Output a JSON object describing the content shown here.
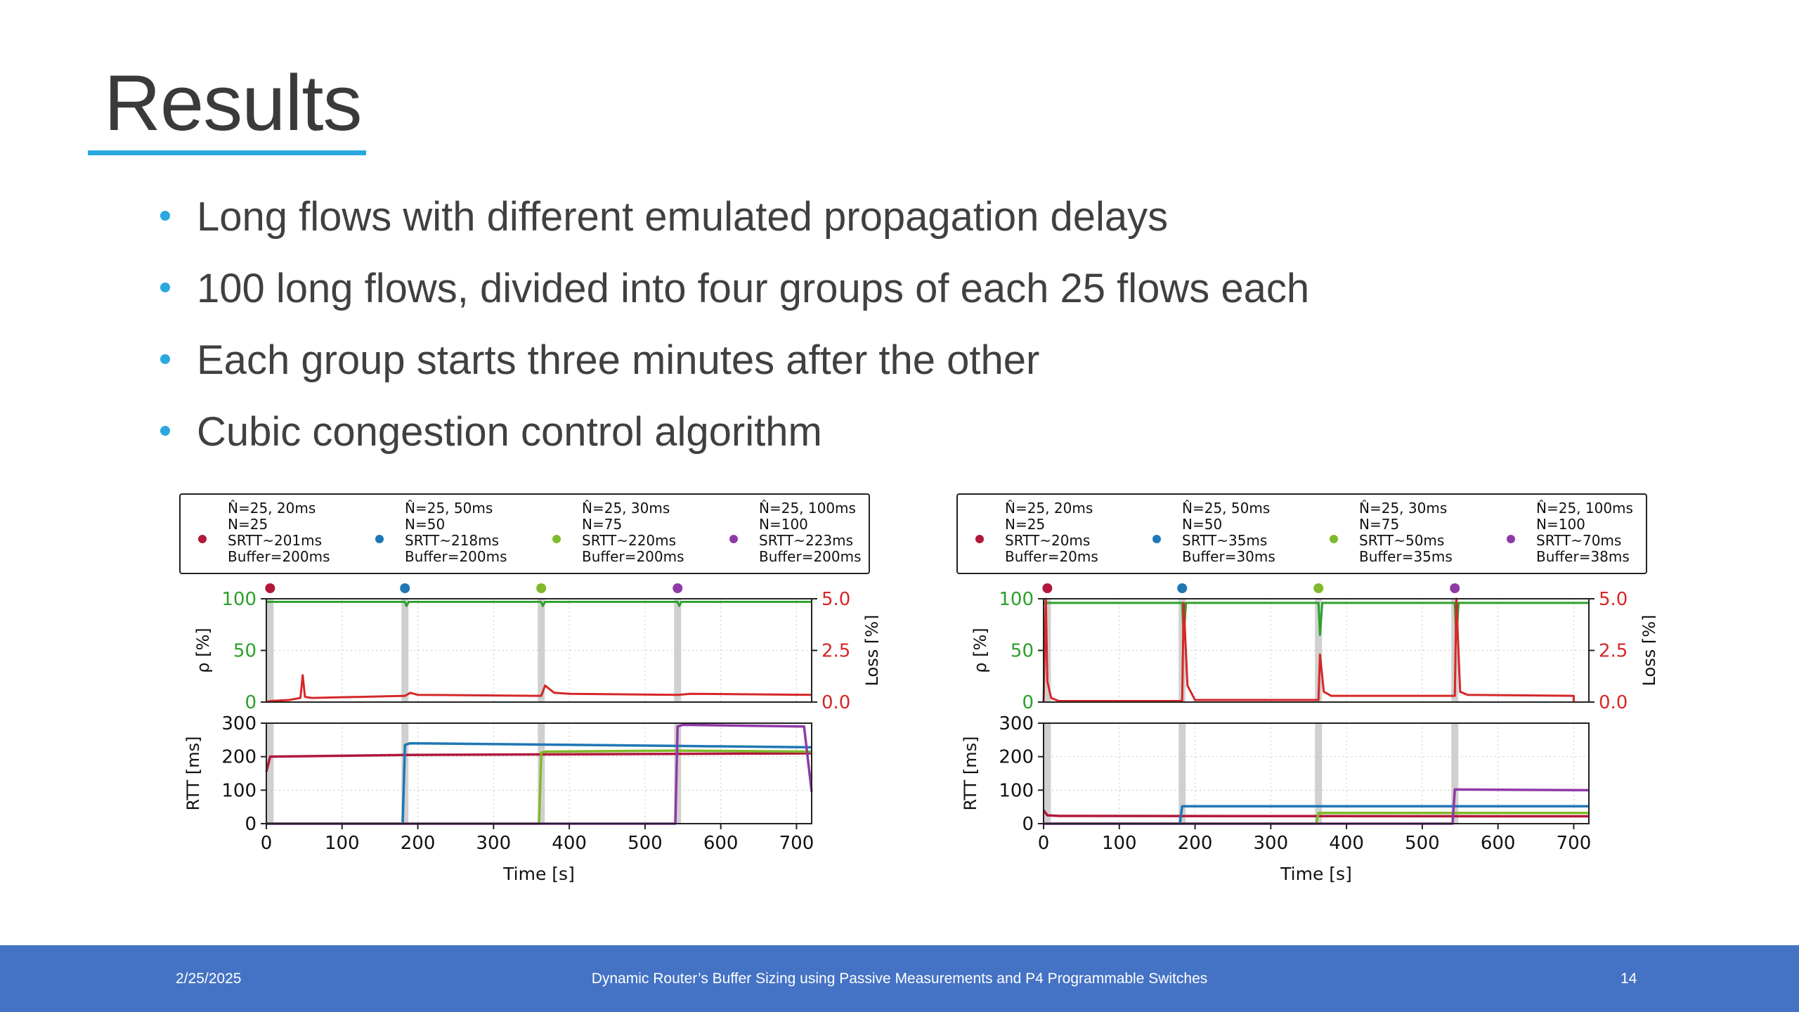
{
  "slide": {
    "title": "Results",
    "bullets": [
      "Long flows with different emulated propagation delays",
      "100 long flows, divided into four groups of each 25 flows each",
      "Each group starts three minutes after the other",
      "Cubic congestion control algorithm"
    ],
    "accent_color": "#2aa8df"
  },
  "footer": {
    "date": "2/25/2025",
    "title": "Dynamic Router’s Buffer Sizing using Passive Measurements and P4 Programmable Switches",
    "page": "14",
    "color": "#4472c4"
  },
  "chart_data": [
    {
      "type": "line",
      "legend": [
        {
          "color": "#b2183c",
          "lines": [
            "N̂=25, 20ms",
            "N=25",
            "SRTT~201ms",
            "Buffer=200ms"
          ]
        },
        {
          "color": "#1f77b4",
          "lines": [
            "N̂=25, 50ms",
            "N=50",
            "SRTT~218ms",
            "Buffer=200ms"
          ]
        },
        {
          "color": "#7fba2a",
          "lines": [
            "N̂=25, 30ms",
            "N=75",
            "SRTT~220ms",
            "Buffer=200ms"
          ]
        },
        {
          "color": "#8e3aa6",
          "lines": [
            "N̂=25, 100ms",
            "N=100",
            "SRTT~223ms",
            "Buffer=200ms"
          ]
        }
      ],
      "start_times": [
        5,
        183,
        363,
        543
      ],
      "top_panel": {
        "ylabel": "ρ [%]",
        "ylim": [
          0,
          100
        ],
        "yticks": [
          "0",
          "50",
          "100"
        ],
        "y2label": "Loss [%]",
        "y2lim": [
          0,
          5
        ],
        "y2ticks": [
          "0.0",
          "2.5",
          "5.0"
        ],
        "series": [
          {
            "axis": "left",
            "color": "#2ca02c",
            "x": [
              0,
              183,
              185,
              188,
              363,
              365,
              368,
              543,
              545,
              548,
              720
            ],
            "values": [
              97,
              97,
              93,
              97,
              97,
              93,
              97,
              97,
              93,
              97,
              97
            ]
          },
          {
            "axis": "right",
            "color": "#d62728",
            "x": [
              0,
              5,
              30,
              45,
              48,
              51,
              60,
              183,
              190,
              200,
              363,
              368,
              380,
              400,
              543,
              560,
              720
            ],
            "values": [
              0,
              0.05,
              0.1,
              0.2,
              1.3,
              0.25,
              0.2,
              0.3,
              0.45,
              0.35,
              0.3,
              0.8,
              0.45,
              0.4,
              0.35,
              0.4,
              0.35
            ]
          }
        ]
      },
      "bottom_panel": {
        "ylabel": "RTT [ms]",
        "ylim": [
          0,
          300
        ],
        "yticks": [
          "0",
          "100",
          "200",
          "300"
        ],
        "xlabel": "Time [s]",
        "xlim": [
          0,
          720
        ],
        "xticks": [
          "0",
          "100",
          "200",
          "300",
          "400",
          "500",
          "600",
          "700"
        ],
        "series": [
          {
            "name": "N̂=25, 20ms",
            "color": "#b2183c",
            "x": [
              0,
              5,
              183,
              720
            ],
            "values": [
              155,
              200,
              205,
              210
            ]
          },
          {
            "name": "N̂=25, 50ms",
            "color": "#1f77b4",
            "x": [
              0,
              180,
              183,
              190,
              543,
              720
            ],
            "values": [
              0,
              0,
              235,
              240,
              232,
              228
            ]
          },
          {
            "name": "N̂=25, 30ms",
            "color": "#7fba2a",
            "x": [
              0,
              360,
              363,
              370,
              543,
              720
            ],
            "values": [
              0,
              0,
              212,
              215,
              218,
              215
            ]
          },
          {
            "name": "N̂=25, 100ms",
            "color": "#8e3aa6",
            "x": [
              0,
              540,
              543,
              550,
              710,
              720
            ],
            "values": [
              0,
              0,
              290,
              295,
              290,
              95
            ]
          }
        ]
      }
    },
    {
      "type": "line",
      "legend": [
        {
          "color": "#b2183c",
          "lines": [
            "N̂=25, 20ms",
            "N=25",
            "SRTT~20ms",
            "Buffer=20ms"
          ]
        },
        {
          "color": "#1f77b4",
          "lines": [
            "N̂=25, 50ms",
            "N=50",
            "SRTT~35ms",
            "Buffer=30ms"
          ]
        },
        {
          "color": "#7fba2a",
          "lines": [
            "N̂=25, 30ms",
            "N=75",
            "SRTT~50ms",
            "Buffer=35ms"
          ]
        },
        {
          "color": "#8e3aa6",
          "lines": [
            "N̂=25, 100ms",
            "N=100",
            "SRTT~70ms",
            "Buffer=38ms"
          ]
        }
      ],
      "start_times": [
        5,
        183,
        363,
        543
      ],
      "top_panel": {
        "ylabel": "ρ [%]",
        "ylim": [
          0,
          100
        ],
        "yticks": [
          "0",
          "50",
          "100"
        ],
        "y2label": "Loss [%]",
        "y2lim": [
          0,
          5
        ],
        "y2ticks": [
          "0.0",
          "2.5",
          "5.0"
        ],
        "series": [
          {
            "axis": "left",
            "color": "#2ca02c",
            "x": [
              0,
              183,
              185,
              188,
              363,
              365,
              368,
              543,
              545,
              548,
              720
            ],
            "values": [
              96,
              96,
              60,
              96,
              96,
              65,
              96,
              96,
              60,
              96,
              96
            ]
          },
          {
            "axis": "right",
            "color": "#d62728",
            "x": [
              0,
              3,
              5,
              10,
              20,
              183,
              185,
              190,
              200,
              363,
              365,
              370,
              380,
              543,
              545,
              550,
              560,
              700,
              700
            ],
            "values": [
              0,
              5,
              1,
              0.2,
              0.05,
              0.05,
              4.8,
              0.8,
              0.1,
              0.1,
              2.3,
              0.5,
              0.3,
              0.3,
              5,
              0.5,
              0.35,
              0.3,
              0
            ]
          }
        ]
      },
      "bottom_panel": {
        "ylabel": "RTT [ms]",
        "ylim": [
          0,
          300
        ],
        "yticks": [
          "0",
          "100",
          "200",
          "300"
        ],
        "xlabel": "Time [s]",
        "xlim": [
          0,
          720
        ],
        "xticks": [
          "0",
          "100",
          "200",
          "300",
          "400",
          "500",
          "600",
          "700"
        ],
        "series": [
          {
            "name": "N̂=25, 20ms",
            "color": "#b2183c",
            "x": [
              0,
              5,
              20,
              720
            ],
            "values": [
              40,
              25,
              23,
              22
            ]
          },
          {
            "name": "N̂=25, 50ms",
            "color": "#1f77b4",
            "x": [
              0,
              180,
              183,
              720
            ],
            "values": [
              0,
              0,
              52,
              52
            ]
          },
          {
            "name": "N̂=25, 30ms",
            "color": "#7fba2a",
            "x": [
              0,
              360,
              363,
              720
            ],
            "values": [
              0,
              0,
              32,
              32
            ]
          },
          {
            "name": "N̂=25, 100ms",
            "color": "#8e3aa6",
            "x": [
              0,
              540,
              543,
              720
            ],
            "values": [
              0,
              0,
              102,
              100
            ]
          }
        ]
      }
    }
  ]
}
